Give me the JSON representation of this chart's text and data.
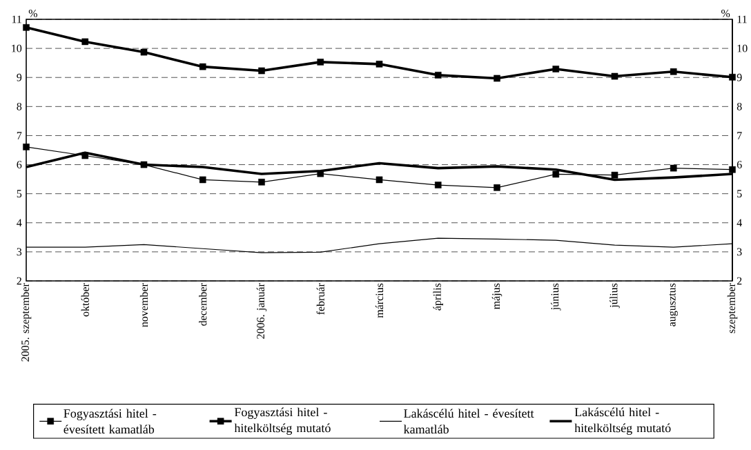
{
  "chart_data": {
    "type": "line",
    "categories": [
      "2005. szeptember",
      "október",
      "november",
      "december",
      "2006. január",
      "február",
      "március",
      "április",
      "május",
      "június",
      "július",
      "augusztus",
      "szeptember"
    ],
    "ylabel": "%",
    "y2label": "%",
    "ylim": [
      2,
      11
    ],
    "yticks": [
      2,
      3,
      4,
      5,
      6,
      7,
      8,
      9,
      10,
      11
    ],
    "y2lim": [
      2,
      11
    ],
    "y2ticks": [
      2,
      3,
      4,
      5,
      6,
      7,
      8,
      9,
      10,
      11
    ],
    "grid": "y",
    "legend": "bottom",
    "line_style": "solid",
    "series": [
      {
        "name": "Fogyasztási hitel - évesített kamatláb",
        "color": "#000000",
        "marker": "square",
        "values": [
          6.61,
          6.31,
          6.0,
          5.48,
          5.4,
          5.69,
          5.48,
          5.3,
          5.21,
          5.67,
          5.64,
          5.88,
          5.83
        ]
      },
      {
        "name": "Fogyasztási hitel - hitelköltség mutató",
        "color": "#000000",
        "marker": "square",
        "values": [
          10.72,
          10.23,
          9.87,
          9.37,
          9.23,
          9.53,
          9.46,
          9.08,
          8.97,
          9.29,
          9.04,
          9.2,
          9.01
        ]
      },
      {
        "name": "Lakáscélú hitel - évesített kamatláb",
        "color": "#000000",
        "marker": "none",
        "values": [
          3.16,
          3.16,
          3.25,
          3.11,
          2.97,
          2.99,
          3.28,
          3.47,
          3.44,
          3.4,
          3.23,
          3.16,
          3.28
        ]
      },
      {
        "name": "Lakáscélú hitel - hitelköltség mutató",
        "color": "#000000",
        "marker": "none",
        "values": [
          5.92,
          6.41,
          6.0,
          5.92,
          5.68,
          5.78,
          6.05,
          5.88,
          5.94,
          5.83,
          5.48,
          5.56,
          5.68
        ]
      }
    ]
  }
}
